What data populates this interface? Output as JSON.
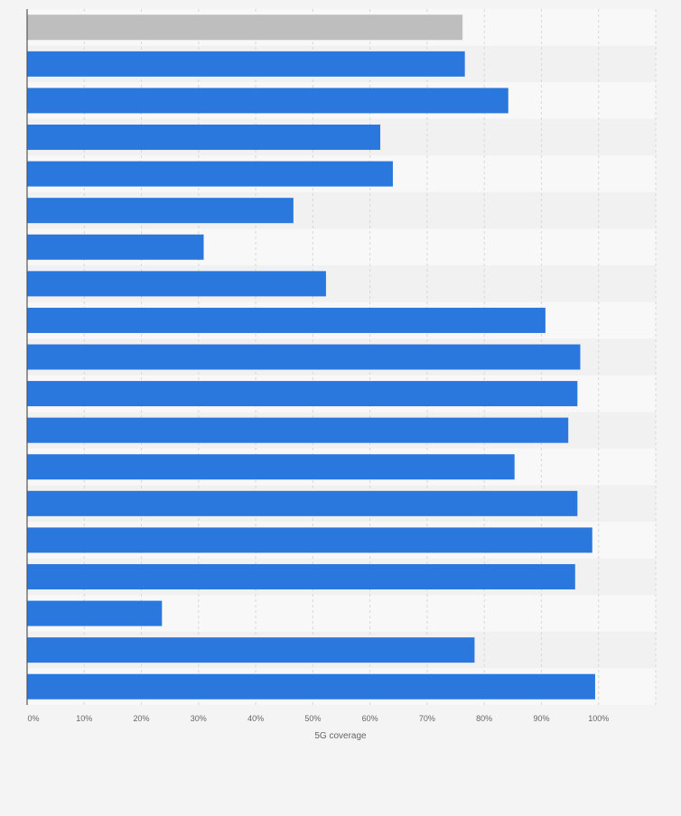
{
  "chart_data": {
    "type": "bar",
    "orientation": "horizontal",
    "categories": [
      "",
      "",
      "",
      "",
      "",
      "",
      "",
      "",
      "",
      "",
      "",
      "",
      "",
      "",
      "",
      "",
      "",
      "",
      ""
    ],
    "values": [
      76.2,
      76.6,
      84.2,
      61.8,
      64.0,
      46.6,
      30.9,
      52.3,
      90.7,
      96.8,
      96.3,
      94.7,
      85.3,
      96.3,
      98.9,
      95.9,
      23.6,
      78.3,
      99.4
    ],
    "highlight_index": 0,
    "title": "",
    "xlabel": "5G coverage",
    "ylabel": "",
    "xlim": [
      0,
      110
    ],
    "ticks": [
      "0%",
      "10%",
      "20%",
      "30%",
      "40%",
      "50%",
      "60%",
      "70%",
      "80%",
      "90%",
      "100%"
    ],
    "tick_values": [
      0,
      10,
      20,
      30,
      40,
      50,
      60,
      70,
      80,
      90,
      100
    ],
    "grid": true,
    "colors": {
      "bar": "#2a77de",
      "highlight_bar": "#bebebe",
      "band_light": "#f8f8f8",
      "band_dark": "#f1f1f1",
      "grid": "#d8d8d8",
      "axis": "#555555",
      "tick_text": "#666666"
    }
  }
}
